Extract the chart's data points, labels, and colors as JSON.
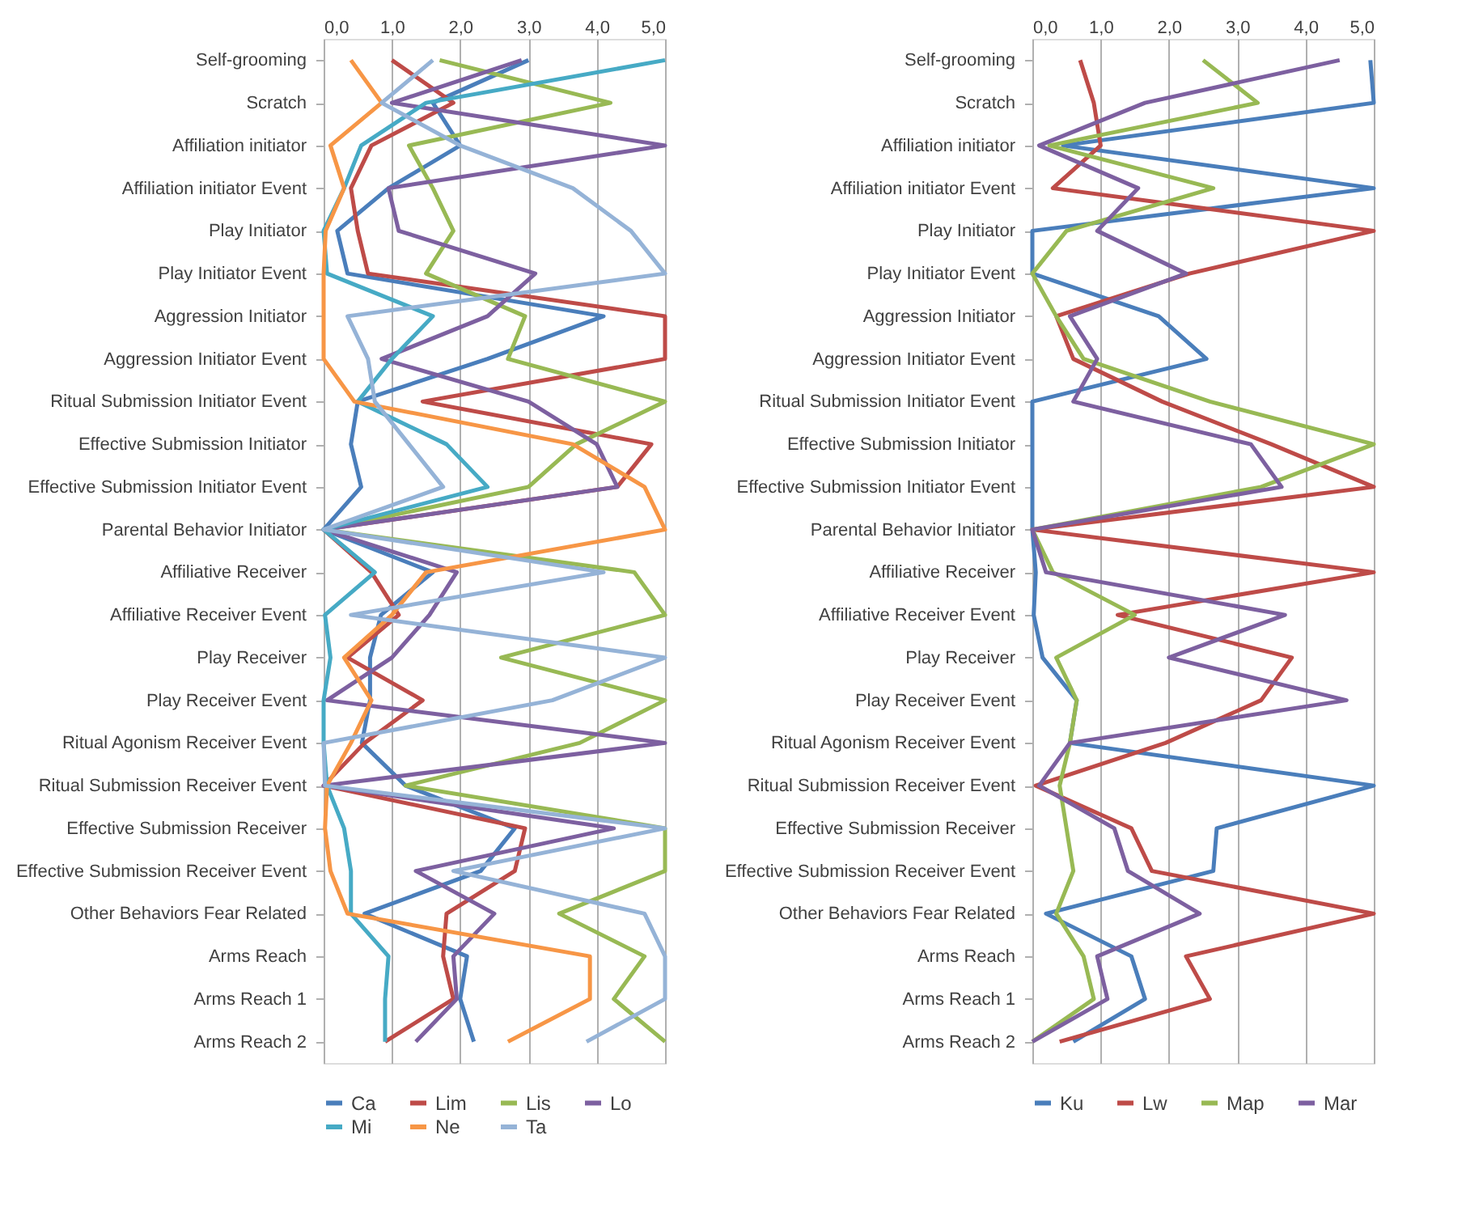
{
  "chart_data": [
    {
      "type": "line",
      "orientation": "horizontal",
      "legend": "bottom",
      "grid": "x",
      "categories": [
        "Self-grooming",
        "Scratch",
        "Affiliation initiator",
        "Affiliation initiator Event",
        "Play Initiator",
        "Play Initiator  Event",
        "Aggression Initiator",
        "Aggression Initiator  Event",
        "Ritual Submission  Initiator Event",
        "Effective Submission  Initiator",
        "Effective Submission  Initiator Event",
        "Parental Behavior Initiator",
        "Affiliative Receiver",
        "Affiliative Receiver Event",
        "Play Receiver",
        "Play Receiver Event",
        "Ritual Agonism Receiver Event",
        "Ritual Submission  Receiver Event",
        "Effective Submission  Receiver",
        "Effective Submission  Receiver Event",
        "Other Behaviors Fear Related",
        "Arms Reach",
        "Arms Reach 1",
        "Arms Reach 2"
      ],
      "xlim": [
        0,
        5
      ],
      "xticks": [
        {
          "value": 0,
          "label": "0,0"
        },
        {
          "value": 1,
          "label": "1,0"
        },
        {
          "value": 2,
          "label": "2,0"
        },
        {
          "value": 3,
          "label": "3,0"
        },
        {
          "value": 4,
          "label": "4,0"
        },
        {
          "value": 5,
          "label": "5,0"
        }
      ],
      "series": [
        {
          "name": "Ca",
          "color": "#4a7ebb",
          "values": [
            3.0,
            1.6,
            2.0,
            0.95,
            0.2,
            0.35,
            4.1,
            2.4,
            0.5,
            0.4,
            0.55,
            0,
            1.6,
            0.84,
            0.68,
            0.68,
            0.56,
            1.2,
            2.8,
            2.3,
            0.6,
            2.1,
            2.0,
            2.2
          ]
        },
        {
          "name": "Lim",
          "color": "#be4b48",
          "values": [
            1.0,
            1.9,
            0.7,
            0.4,
            0.5,
            0.65,
            5.0,
            5.0,
            1.45,
            4.8,
            4.3,
            0,
            0.7,
            1.1,
            0.35,
            1.45,
            0.6,
            0,
            2.95,
            2.8,
            1.8,
            1.75,
            1.9,
            0.9
          ]
        },
        {
          "name": "Lis",
          "color": "#98b954",
          "values": [
            1.7,
            4.2,
            1.25,
            1.6,
            1.9,
            1.5,
            2.95,
            2.7,
            5.0,
            3.7,
            3.0,
            0,
            4.55,
            5.0,
            2.6,
            5.0,
            3.75,
            1.2,
            5.0,
            5.0,
            3.45,
            4.7,
            4.25,
            5.0
          ]
        },
        {
          "name": "Lo",
          "color": "#7d60a0",
          "values": [
            2.9,
            1.0,
            5.0,
            0.95,
            1.1,
            3.1,
            2.4,
            0.85,
            3.0,
            4.0,
            4.3,
            0,
            1.95,
            1.55,
            1.0,
            0.05,
            5.0,
            0,
            4.25,
            1.35,
            2.5,
            1.9,
            1.95,
            1.35
          ]
        },
        {
          "name": "Mi",
          "color": "#46aac5",
          "values": [
            5.0,
            1.5,
            0.55,
            0.3,
            0,
            0.05,
            1.6,
            1.0,
            0.5,
            1.8,
            2.4,
            0,
            0.75,
            0.02,
            0.1,
            0,
            0,
            0.05,
            0.3,
            0.4,
            0.4,
            0.95,
            0.9,
            0.9
          ]
        },
        {
          "name": "Ne",
          "color": "#f79646",
          "values": [
            0.4,
            0.85,
            0.1,
            0.3,
            0.03,
            0,
            0,
            0,
            0.45,
            3.65,
            4.7,
            5.0,
            1.5,
            1.0,
            0.3,
            0.7,
            0.4,
            0.05,
            0.02,
            0.1,
            0.35,
            3.9,
            3.9,
            2.7
          ]
        },
        {
          "name": "Ta",
          "color": "#95b3d7",
          "values": [
            1.6,
            0.85,
            2.0,
            3.65,
            4.5,
            5.0,
            0.35,
            0.65,
            0.75,
            1.25,
            1.75,
            0,
            4.1,
            0.4,
            5.0,
            3.35,
            0,
            0.02,
            5.0,
            1.9,
            4.7,
            5.0,
            5.0,
            3.85
          ]
        }
      ]
    },
    {
      "type": "line",
      "orientation": "horizontal",
      "legend": "bottom",
      "grid": "x",
      "categories": [
        "Self-grooming",
        "Scratch",
        "Affiliation initiator",
        "Affiliation initiator Event",
        "Play Initiator",
        "Play Initiator  Event",
        "Aggression Initiator",
        "Aggression Initiator  Event",
        "Ritual Submission  Initiator Event",
        "Effective Submission  Initiator",
        "Effective Submission  Initiator Event",
        "Parental Behavior Initiator",
        "Affiliative Receiver",
        "Affiliative Receiver Event",
        "Play Receiver",
        "Play Receiver Event",
        "Ritual Agonism Receiver Event",
        "Ritual Submission  Receiver Event",
        "Effective Submission  Receiver",
        "Effective Submission  Receiver Event",
        "Other Behaviors Fear Related",
        "Arms Reach",
        "Arms Reach 1",
        "Arms Reach 2"
      ],
      "xlim": [
        0,
        5
      ],
      "xticks": [
        {
          "value": 0,
          "label": "0,0"
        },
        {
          "value": 1,
          "label": "1,0"
        },
        {
          "value": 2,
          "label": "2,0"
        },
        {
          "value": 3,
          "label": "3,0"
        },
        {
          "value": 4,
          "label": "4,0"
        },
        {
          "value": 5,
          "label": "5,0"
        }
      ],
      "series": [
        {
          "name": "Ku",
          "color": "#4a7ebb",
          "values": [
            4.95,
            5.0,
            0.45,
            5.0,
            0,
            0,
            1.85,
            2.55,
            0,
            0,
            0,
            0,
            0.05,
            0.02,
            0.15,
            0.65,
            0.55,
            5.0,
            2.7,
            2.65,
            0.2,
            1.45,
            1.65,
            0.6
          ]
        },
        {
          "name": "Lw",
          "color": "#be4b48",
          "values": [
            0.7,
            0.9,
            1.0,
            0.3,
            5.0,
            2.3,
            0.35,
            0.6,
            1.9,
            3.5,
            5.0,
            0,
            5.0,
            1.25,
            3.8,
            3.35,
            1.95,
            0.05,
            1.45,
            1.75,
            5.0,
            2.25,
            2.6,
            0.4
          ]
        },
        {
          "name": "Map",
          "color": "#98b954",
          "values": [
            2.5,
            3.3,
            0.25,
            2.65,
            0.5,
            0,
            0.35,
            0.75,
            2.6,
            5.0,
            3.35,
            0,
            0.3,
            1.5,
            0.35,
            0.65,
            0.55,
            0.4,
            0.5,
            0.6,
            0.35,
            0.75,
            0.9,
            0
          ]
        },
        {
          "name": "Mar",
          "color": "#7d60a0",
          "values": [
            4.5,
            1.65,
            0.1,
            1.55,
            0.95,
            2.25,
            0.55,
            0.95,
            0.6,
            3.2,
            3.65,
            0,
            0.2,
            3.7,
            2.0,
            4.6,
            0.55,
            0.1,
            1.2,
            1.4,
            2.45,
            0.95,
            1.1,
            0
          ]
        }
      ]
    }
  ]
}
